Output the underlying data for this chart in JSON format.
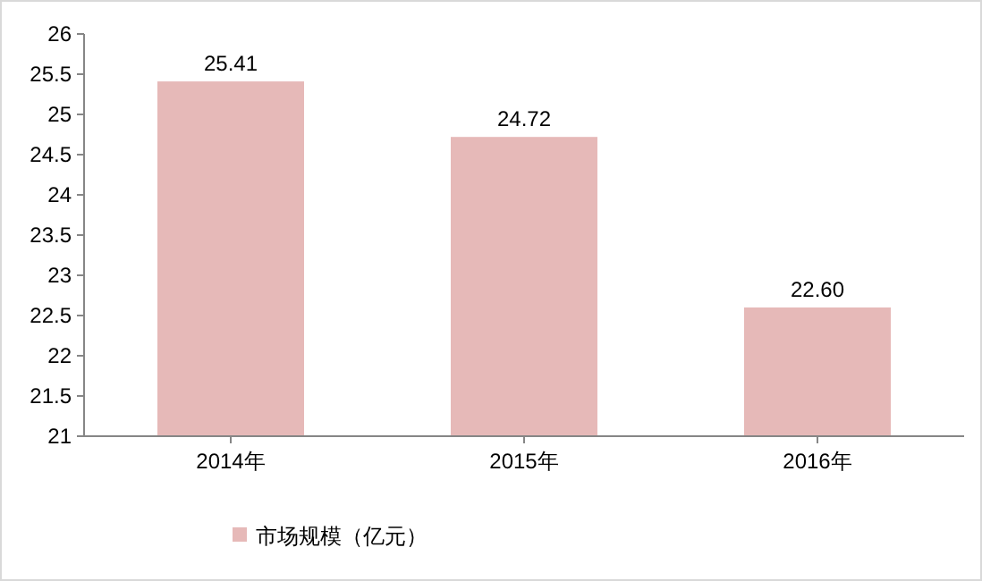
{
  "chart_data": {
    "type": "bar",
    "categories": [
      "2014年",
      "2015年",
      "2016年"
    ],
    "series": [
      {
        "name": "市场规模（亿元）",
        "color": "#e6b9b8",
        "values": [
          25.41,
          24.72,
          22.6
        ]
      }
    ],
    "value_labels": [
      "25.41",
      "24.72",
      "22.60"
    ],
    "ylim": [
      21,
      26
    ],
    "yticks": [
      21,
      21.5,
      22,
      22.5,
      23,
      23.5,
      24,
      24.5,
      25,
      25.5,
      26
    ],
    "grid": false,
    "legend": "bottom"
  }
}
